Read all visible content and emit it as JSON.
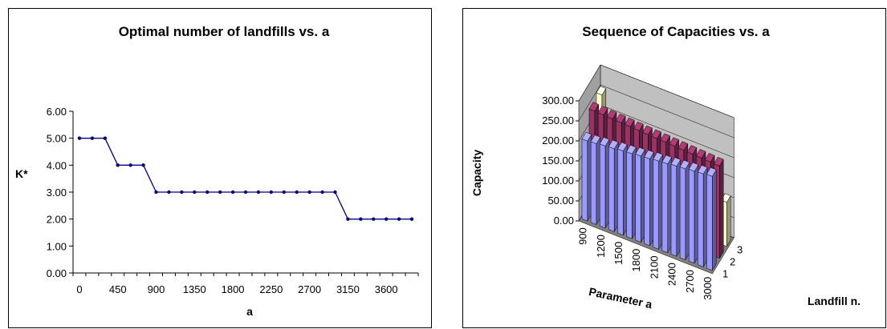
{
  "chart_data": [
    {
      "type": "line",
      "title": "Optimal number of landfills vs. a",
      "xlabel": "a",
      "ylabel": "K*",
      "x": [
        0,
        150,
        300,
        450,
        600,
        750,
        900,
        1050,
        1200,
        1350,
        1500,
        1650,
        1800,
        1950,
        2100,
        2250,
        2400,
        2550,
        2700,
        2850,
        3000,
        3150,
        3300,
        3450,
        3600,
        3750,
        3900
      ],
      "values": [
        5,
        5,
        5,
        4,
        4,
        4,
        3,
        3,
        3,
        3,
        3,
        3,
        3,
        3,
        3,
        3,
        3,
        3,
        3,
        3,
        3,
        2,
        2,
        2,
        2,
        2,
        2
      ],
      "x_tick_labels": [
        "0",
        "450",
        "900",
        "1350",
        "1800",
        "2250",
        "2700",
        "3150",
        "3600"
      ],
      "y_tick_labels": [
        "0.00",
        "1.00",
        "2.00",
        "3.00",
        "4.00",
        "5.00",
        "6.00"
      ],
      "ylim": [
        0,
        6
      ],
      "grid": false,
      "line_color": "#000080"
    },
    {
      "type": "bar",
      "subtype": "3d-column",
      "title": "Sequence of Capacities vs. a",
      "xlabel": "Parameter a",
      "ylabel": "Capacity",
      "zlabel": "Landfill n.",
      "categories": [
        "900",
        "1050",
        "1200",
        "1350",
        "1500",
        "1650",
        "1800",
        "1950",
        "2100",
        "2250",
        "2400",
        "2550",
        "2700",
        "2850",
        "3000"
      ],
      "x_tick_labels": [
        "900",
        "1200",
        "1500",
        "1800",
        "2100",
        "2400",
        "2700",
        "3000"
      ],
      "depth_tick_labels": [
        "1",
        "2",
        "3"
      ],
      "y_tick_labels": [
        "0.00",
        "50.00",
        "100.00",
        "150.00",
        "200.00",
        "250.00",
        "300.00"
      ],
      "ylim": [
        0,
        300
      ],
      "series": [
        {
          "name": "1",
          "color": "#9999ff",
          "values": [
            200,
            202,
            205,
            207,
            210,
            212,
            215,
            217,
            220,
            222,
            225,
            227,
            230,
            232,
            235
          ]
        },
        {
          "name": "2",
          "color": "#993366",
          "values": [
            245,
            244,
            243,
            242,
            241,
            240,
            239,
            238,
            237,
            236,
            235,
            234,
            233,
            232,
            231
          ]
        },
        {
          "name": "3",
          "color": "#ffffcc",
          "values": [
            255,
            0,
            0,
            0,
            0,
            0,
            0,
            0,
            0,
            0,
            0,
            0,
            0,
            0,
            110
          ]
        }
      ]
    }
  ]
}
